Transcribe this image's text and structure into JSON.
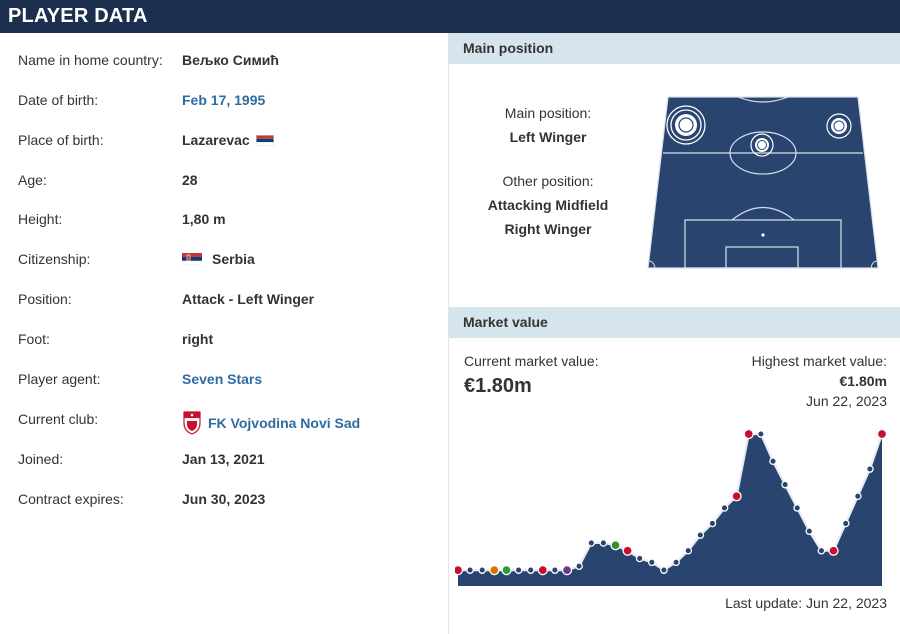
{
  "header": {
    "title": "PLAYER DATA"
  },
  "player": {
    "rows": [
      {
        "label": "Name in home country:",
        "value": "Вељко Симић",
        "link": false
      },
      {
        "label": "Date of birth:",
        "value": "Feb 17, 1995",
        "link": true
      },
      {
        "label": "Place of birth:",
        "value": "Lazarevac",
        "link": false,
        "flag": "serbia-flag-icon"
      },
      {
        "label": "Age:",
        "value": "28",
        "link": false
      },
      {
        "label": "Height:",
        "value": "1,80 m",
        "link": false
      },
      {
        "label": "Citizenship:",
        "value": "Serbia",
        "link": false,
        "flag": "serbia-flag-icon"
      },
      {
        "label": "Position:",
        "value": "Attack - Left Winger",
        "link": false
      },
      {
        "label": "Foot:",
        "value": "right",
        "link": false
      },
      {
        "label": "Player agent:",
        "value": "Seven Stars",
        "link": true
      },
      {
        "label": "Current club:",
        "value": "FK Vojvodina Novi Sad",
        "link": true,
        "icon": "vojvodina-crest-icon"
      },
      {
        "label": "Joined:",
        "value": "Jan 13, 2021",
        "link": false
      },
      {
        "label": "Contract expires:",
        "value": "Jun 30, 2023",
        "link": false
      }
    ]
  },
  "main_position": {
    "title": "Main position",
    "main_label": "Main position:",
    "main_value": "Left Winger",
    "other_label": "Other position:",
    "other_values": [
      "Attacking Midfield",
      "Right Winger"
    ]
  },
  "market_value": {
    "title": "Market value",
    "current_label": "Current market value:",
    "current_value": "€1.80m",
    "highest_label": "Highest market value:",
    "highest_value": "€1.80m",
    "highest_date": "Jun 22, 2023",
    "last_update": "Last update: Jun 22, 2023"
  },
  "colors": {
    "header_bg": "#1c2f4f",
    "panel_title_bg": "#d6e4ee",
    "link": "#2d6ca3",
    "chart_fill": "#2a4470",
    "pitch": "#2a4470"
  },
  "chart_data": {
    "type": "area",
    "xlabel": "",
    "ylabel": "",
    "series": [
      {
        "values": [
          0.05,
          0.05,
          0.05,
          0.05,
          0.05,
          0.05,
          0.05,
          0.05,
          0.05,
          0.05,
          0.1,
          0.4,
          0.4,
          0.37,
          0.3,
          0.2,
          0.15,
          0.05,
          0.15,
          0.3,
          0.5,
          0.65,
          0.85,
          1.0,
          1.8,
          1.8,
          1.45,
          1.15,
          0.85,
          0.55,
          0.3,
          0.3,
          0.65,
          1.0,
          1.35,
          1.8
        ]
      }
    ]
  }
}
